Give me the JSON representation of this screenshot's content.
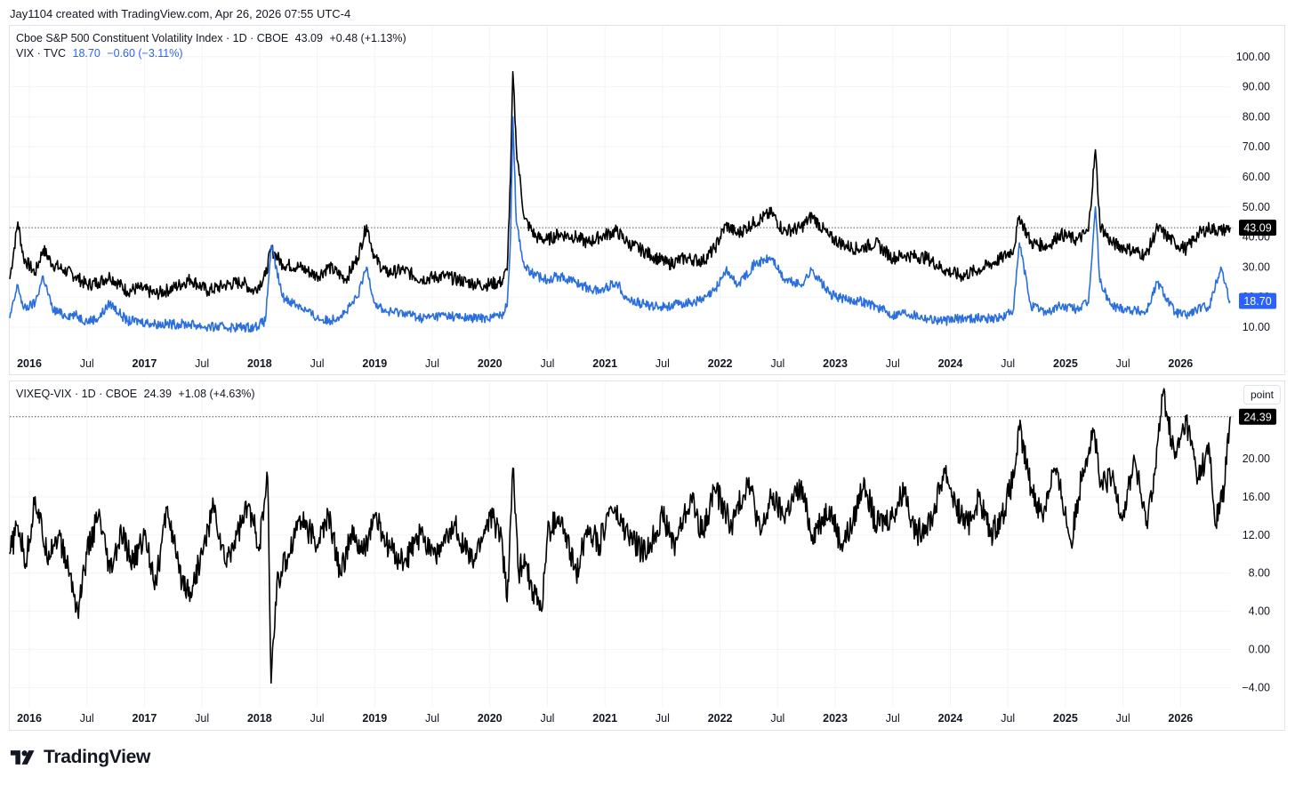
{
  "header": {
    "attribution": "Jay1104 created with TradingView.com, Apr 26, 2026 07:55 UTC-4"
  },
  "colors": {
    "vixeq": "#000000",
    "vix": "#2a6fdb",
    "grid": "#f0f3fa",
    "axis_text": "#131722",
    "frame": "#e0e3eb"
  },
  "top_pane": {
    "legend_line1": {
      "name": "Cboe S&P 500 Constituent Volatility Index · 1D · CBOE",
      "last": "43.09",
      "change": "+0.48 (+1.13%)"
    },
    "legend_line2": {
      "name": "VIX · TVC",
      "last": "18.70",
      "change": "−0.60 (−3.11%)"
    },
    "price_tags": {
      "vixeq": "43.09",
      "vix": "18.70"
    }
  },
  "bottom_pane": {
    "legend": {
      "name": "VIXEQ-VIX · 1D · CBOE",
      "last": "24.39",
      "change": "+1.08 (+4.63%)"
    },
    "scale_button": "point",
    "price_tag": "24.39"
  },
  "footer": {
    "logo_text": "TradingView"
  },
  "chart_data": [
    {
      "type": "line",
      "pane": "top",
      "title": "",
      "x_ticks": [
        "2016",
        "Jul",
        "2017",
        "Jul",
        "2018",
        "Jul",
        "2019",
        "Jul",
        "2020",
        "Jul",
        "2021",
        "Jul",
        "2022",
        "Jul",
        "2023",
        "Jul",
        "2024",
        "Jul",
        "2025",
        "Jul",
        "2026"
      ],
      "y_ticks": [
        "10.00",
        "20.00",
        "30.00",
        "40.00",
        "50.00",
        "60.00",
        "70.00",
        "80.00",
        "90.00",
        "100.00"
      ],
      "ylim": [
        2,
        110
      ],
      "xlim": [
        2015.83,
        2026.43
      ],
      "grid": true,
      "last_value_line": 43.09,
      "series": [
        {
          "name": "Cboe S&P 500 Constituent Volatility Index",
          "color": "#000000",
          "x": [
            2015.83,
            2015.9,
            2015.95,
            2016.05,
            2016.12,
            2016.2,
            2016.3,
            2016.4,
            2016.5,
            2016.6,
            2016.7,
            2016.85,
            2016.95,
            2017.1,
            2017.25,
            2017.4,
            2017.55,
            2017.7,
            2017.85,
            2017.95,
            2018.05,
            2018.1,
            2018.2,
            2018.35,
            2018.5,
            2018.6,
            2018.75,
            2018.85,
            2018.93,
            2019.0,
            2019.1,
            2019.25,
            2019.4,
            2019.6,
            2019.8,
            2019.95,
            2020.1,
            2020.15,
            2020.18,
            2020.2,
            2020.23,
            2020.3,
            2020.4,
            2020.5,
            2020.6,
            2020.75,
            2020.85,
            2020.95,
            2021.1,
            2021.2,
            2021.4,
            2021.55,
            2021.7,
            2021.85,
            2021.95,
            2022.05,
            2022.15,
            2022.3,
            2022.45,
            2022.55,
            2022.7,
            2022.8,
            2022.95,
            2023.1,
            2023.2,
            2023.35,
            2023.5,
            2023.6,
            2023.8,
            2023.95,
            2024.1,
            2024.3,
            2024.45,
            2024.55,
            2024.6,
            2024.7,
            2024.85,
            2024.95,
            2025.1,
            2025.2,
            2025.26,
            2025.3,
            2025.4,
            2025.55,
            2025.7,
            2025.8,
            2025.95,
            2026.05,
            2026.15,
            2026.25,
            2026.35,
            2026.43
          ],
          "y": [
            26,
            45,
            33,
            28,
            36,
            31,
            29,
            27,
            24,
            25,
            27,
            22,
            23,
            21,
            23,
            26,
            22,
            24,
            25,
            22,
            27,
            36,
            31,
            30,
            27,
            30,
            26,
            33,
            44,
            33,
            28,
            29,
            26,
            27,
            25,
            24,
            25,
            29,
            60,
            95,
            70,
            46,
            40,
            39,
            41,
            40,
            38,
            40,
            42,
            38,
            34,
            31,
            33,
            32,
            36,
            44,
            41,
            45,
            48,
            42,
            43,
            47,
            40,
            37,
            36,
            38,
            33,
            34,
            33,
            29,
            27,
            30,
            33,
            36,
            47,
            38,
            37,
            41,
            39,
            42,
            69,
            44,
            38,
            36,
            34,
            43,
            38,
            36,
            41,
            43,
            42,
            43.09
          ]
        },
        {
          "name": "VIX",
          "color": "#2a6fdb",
          "x": [
            2015.83,
            2015.9,
            2015.95,
            2016.05,
            2016.12,
            2016.2,
            2016.3,
            2016.4,
            2016.5,
            2016.6,
            2016.7,
            2016.85,
            2016.95,
            2017.1,
            2017.25,
            2017.4,
            2017.55,
            2017.7,
            2017.85,
            2017.95,
            2018.05,
            2018.1,
            2018.2,
            2018.35,
            2018.5,
            2018.6,
            2018.75,
            2018.85,
            2018.93,
            2019.0,
            2019.1,
            2019.25,
            2019.4,
            2019.6,
            2019.8,
            2019.95,
            2020.1,
            2020.15,
            2020.18,
            2020.2,
            2020.23,
            2020.3,
            2020.4,
            2020.5,
            2020.6,
            2020.75,
            2020.85,
            2020.95,
            2021.1,
            2021.2,
            2021.4,
            2021.55,
            2021.7,
            2021.85,
            2021.95,
            2022.05,
            2022.15,
            2022.3,
            2022.45,
            2022.55,
            2022.7,
            2022.8,
            2022.95,
            2023.1,
            2023.2,
            2023.35,
            2023.5,
            2023.6,
            2023.8,
            2023.95,
            2024.1,
            2024.3,
            2024.45,
            2024.55,
            2024.6,
            2024.7,
            2024.85,
            2024.95,
            2025.1,
            2025.2,
            2025.26,
            2025.3,
            2025.4,
            2025.55,
            2025.7,
            2025.8,
            2025.95,
            2026.05,
            2026.15,
            2026.25,
            2026.35,
            2026.43
          ],
          "y": [
            13,
            24,
            16,
            18,
            27,
            16,
            14,
            14,
            12,
            13,
            18,
            12,
            12,
            11,
            11,
            11,
            10,
            10,
            10,
            10,
            12,
            37,
            20,
            17,
            13,
            12,
            15,
            20,
            30,
            18,
            15,
            15,
            13,
            14,
            13,
            13,
            14,
            17,
            40,
            80,
            45,
            30,
            27,
            26,
            27,
            25,
            23,
            22,
            25,
            19,
            17,
            17,
            18,
            19,
            22,
            29,
            24,
            31,
            33,
            26,
            24,
            29,
            21,
            19,
            19,
            17,
            14,
            15,
            13,
            12,
            13,
            13,
            13,
            16,
            38,
            17,
            15,
            17,
            16,
            18,
            50,
            25,
            17,
            16,
            15,
            25,
            15,
            14,
            16,
            17,
            30,
            18.7
          ]
        }
      ]
    },
    {
      "type": "line",
      "pane": "bottom",
      "title": "",
      "x_ticks": [
        "2016",
        "Jul",
        "2017",
        "Jul",
        "2018",
        "Jul",
        "2019",
        "Jul",
        "2020",
        "Jul",
        "2021",
        "Jul",
        "2022",
        "Jul",
        "2023",
        "Jul",
        "2024",
        "Jul",
        "2025",
        "Jul",
        "2026"
      ],
      "y_ticks": [
        "−4.00",
        "0.00",
        "4.00",
        "8.00",
        "12.00",
        "16.00",
        "20.00"
      ],
      "ylim": [
        -6,
        28
      ],
      "xlim": [
        2015.83,
        2026.43
      ],
      "grid": true,
      "last_value_line": 24.39,
      "series": [
        {
          "name": "VIXEQ-VIX",
          "color": "#000000",
          "x": [
            2015.83,
            2015.9,
            2015.97,
            2016.05,
            2016.15,
            2016.25,
            2016.35,
            2016.42,
            2016.5,
            2016.6,
            2016.7,
            2016.8,
            2016.9,
            2017.0,
            2017.1,
            2017.2,
            2017.3,
            2017.4,
            2017.5,
            2017.6,
            2017.7,
            2017.8,
            2017.9,
            2018.0,
            2018.07,
            2018.1,
            2018.15,
            2018.25,
            2018.35,
            2018.5,
            2018.6,
            2018.7,
            2018.8,
            2018.9,
            2019.0,
            2019.1,
            2019.25,
            2019.4,
            2019.55,
            2019.7,
            2019.85,
            2020.0,
            2020.1,
            2020.15,
            2020.2,
            2020.25,
            2020.3,
            2020.35,
            2020.45,
            2020.5,
            2020.6,
            2020.75,
            2020.85,
            2020.95,
            2021.05,
            2021.2,
            2021.35,
            2021.5,
            2021.6,
            2021.75,
            2021.85,
            2021.95,
            2022.1,
            2022.25,
            2022.35,
            2022.45,
            2022.55,
            2022.7,
            2022.8,
            2022.95,
            2023.05,
            2023.15,
            2023.25,
            2023.35,
            2023.5,
            2023.6,
            2023.7,
            2023.85,
            2023.95,
            2024.05,
            2024.15,
            2024.25,
            2024.35,
            2024.45,
            2024.55,
            2024.6,
            2024.7,
            2024.8,
            2024.9,
            2024.97,
            2025.05,
            2025.15,
            2025.25,
            2025.3,
            2025.4,
            2025.5,
            2025.6,
            2025.7,
            2025.78,
            2025.85,
            2025.95,
            2026.05,
            2026.15,
            2026.25,
            2026.3,
            2026.38,
            2026.43
          ],
          "y": [
            10,
            13,
            9,
            16,
            10,
            12,
            8,
            4,
            10,
            14,
            8,
            12,
            9,
            12,
            7,
            15,
            8,
            6,
            10,
            15,
            9,
            12,
            15,
            11,
            18,
            -3.5,
            7,
            10,
            14,
            11,
            14,
            8,
            12,
            10,
            14,
            11,
            9,
            12,
            10,
            13,
            9,
            14,
            12,
            5,
            19,
            8,
            10,
            7,
            4,
            12,
            14,
            8,
            13,
            11,
            15,
            12,
            10,
            14,
            11,
            16,
            12,
            17,
            13,
            18,
            12,
            16,
            14,
            17,
            12,
            15,
            11,
            13,
            18,
            13,
            14,
            17,
            12,
            14,
            19,
            15,
            13,
            16,
            12,
            14,
            18,
            23,
            17,
            14,
            19,
            16,
            11,
            19,
            23,
            17,
            18,
            14,
            20,
            13,
            19,
            27,
            20,
            24,
            18,
            21,
            13,
            17,
            24.39
          ]
        }
      ]
    }
  ]
}
